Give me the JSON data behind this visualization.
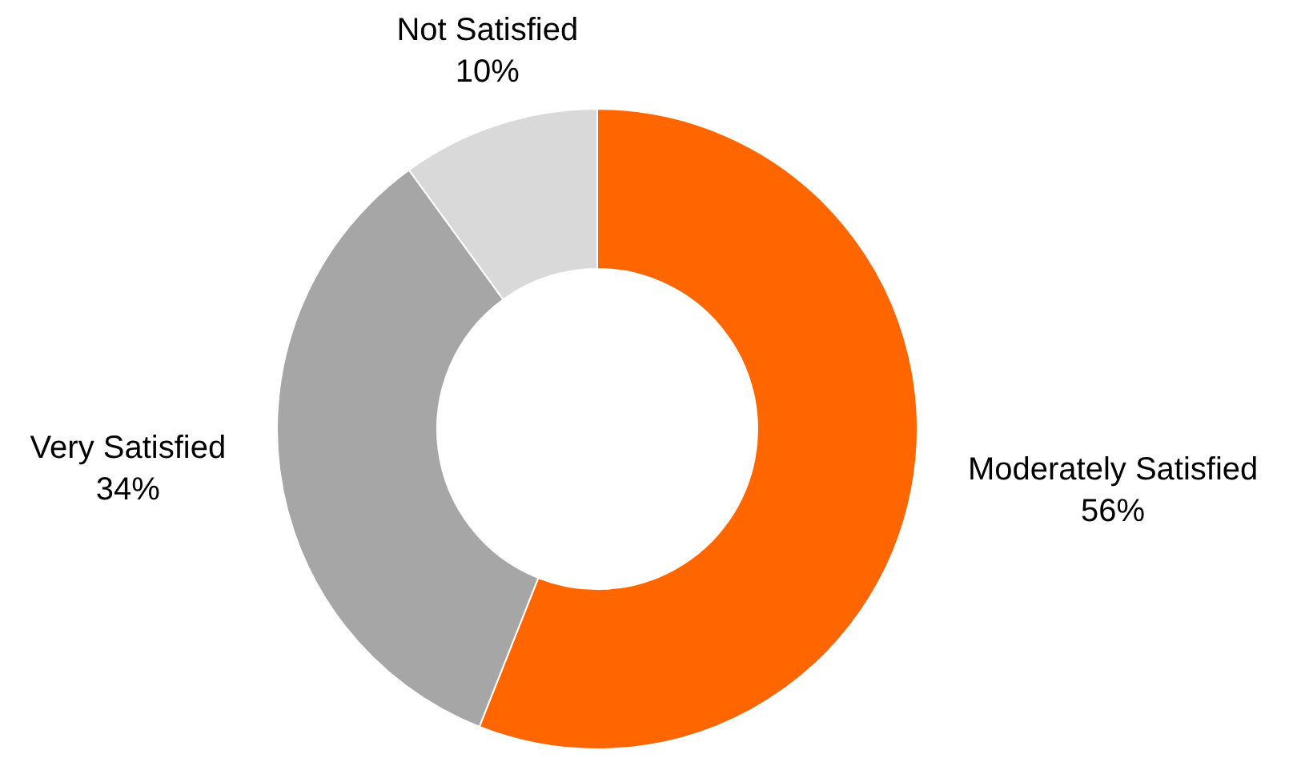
{
  "chart_data": {
    "type": "donut",
    "categories": [
      "Moderately Satisfied",
      "Very Satisfied",
      "Not Satisfied"
    ],
    "values": [
      56,
      34,
      10
    ],
    "colors": [
      "#ff6600",
      "#a6a6a6",
      "#d9d9d9"
    ],
    "value_labels": [
      "56%",
      "34%",
      "10%"
    ]
  }
}
